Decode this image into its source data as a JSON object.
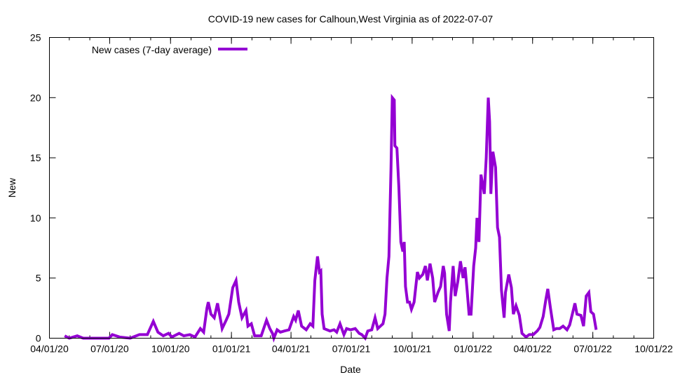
{
  "chart_data": {
    "type": "line",
    "title": "COVID-19 new cases for Calhoun,West Virginia as of 2022-07-07",
    "xlabel": "Date",
    "ylabel": "New",
    "ylim": [
      0,
      25
    ],
    "yticks": [
      0,
      5,
      10,
      15,
      20,
      25
    ],
    "x_origin": "2020-04-01",
    "x_unit": "days since 2020-04-01",
    "xlim": [
      0,
      913
    ],
    "xticks": [
      {
        "day": 0,
        "label": "04/01/20"
      },
      {
        "day": 91,
        "label": "07/01/20"
      },
      {
        "day": 183,
        "label": "10/01/20"
      },
      {
        "day": 275,
        "label": "01/01/21"
      },
      {
        "day": 365,
        "label": "04/01/21"
      },
      {
        "day": 456,
        "label": "07/01/21"
      },
      {
        "day": 548,
        "label": "10/01/21"
      },
      {
        "day": 640,
        "label": "01/01/22"
      },
      {
        "day": 730,
        "label": "04/01/22"
      },
      {
        "day": 821,
        "label": "07/01/22"
      },
      {
        "day": 913,
        "label": "10/01/22"
      }
    ],
    "grid": false,
    "legend": {
      "position": "top-left",
      "entries": [
        {
          "label": "New cases (7-day average)",
          "color": "#9400d3"
        }
      ]
    },
    "series": [
      {
        "name": "New cases (7-day average)",
        "color": "#9400d3",
        "points": [
          [
            23,
            0.2
          ],
          [
            30,
            0
          ],
          [
            42,
            0.2
          ],
          [
            51,
            0
          ],
          [
            90,
            0
          ],
          [
            95,
            0.3
          ],
          [
            106,
            0.1
          ],
          [
            122,
            0
          ],
          [
            136,
            0.3
          ],
          [
            148,
            0.3
          ],
          [
            157,
            1.4
          ],
          [
            164,
            0.5
          ],
          [
            172,
            0.2
          ],
          [
            180,
            0.4
          ],
          [
            185,
            0.1
          ],
          [
            196,
            0.4
          ],
          [
            203,
            0.2
          ],
          [
            212,
            0.3
          ],
          [
            220,
            0.1
          ],
          [
            228,
            0.8
          ],
          [
            233,
            0.5
          ],
          [
            238,
            2.5
          ],
          [
            240,
            3.0
          ],
          [
            244,
            2.0
          ],
          [
            249,
            1.7
          ],
          [
            254,
            2.9
          ],
          [
            261,
            0.8
          ],
          [
            267,
            1.5
          ],
          [
            271,
            2.0
          ],
          [
            277,
            4.2
          ],
          [
            282,
            4.8
          ],
          [
            286,
            3.0
          ],
          [
            291,
            1.7
          ],
          [
            297,
            2.3
          ],
          [
            300,
            1.0
          ],
          [
            305,
            1.2
          ],
          [
            310,
            0.2
          ],
          [
            320,
            0.2
          ],
          [
            328,
            1.5
          ],
          [
            333,
            0.8
          ],
          [
            337,
            0.4
          ],
          [
            339,
            0
          ],
          [
            344,
            0.7
          ],
          [
            349,
            0.5
          ],
          [
            355,
            0.6
          ],
          [
            362,
            0.7
          ],
          [
            369,
            1.8
          ],
          [
            372,
            1.5
          ],
          [
            376,
            2.3
          ],
          [
            381,
            1.0
          ],
          [
            388,
            0.7
          ],
          [
            394,
            1.2
          ],
          [
            398,
            1.0
          ],
          [
            401,
            4.8
          ],
          [
            405,
            6.8
          ],
          [
            408,
            5.5
          ],
          [
            410,
            5.6
          ],
          [
            412,
            2.0
          ],
          [
            415,
            0.8
          ],
          [
            424,
            0.6
          ],
          [
            430,
            0.7
          ],
          [
            434,
            0.5
          ],
          [
            439,
            1.2
          ],
          [
            445,
            0.3
          ],
          [
            449,
            0.8
          ],
          [
            455,
            0.7
          ],
          [
            462,
            0.8
          ],
          [
            468,
            0.4
          ],
          [
            472,
            0.3
          ],
          [
            477,
            0
          ],
          [
            481,
            0.6
          ],
          [
            487,
            0.7
          ],
          [
            492,
            1.7
          ],
          [
            496,
            0.8
          ],
          [
            500,
            1.0
          ],
          [
            504,
            1.2
          ],
          [
            507,
            2.0
          ],
          [
            510,
            5.0
          ],
          [
            513,
            6.8
          ],
          [
            516,
            14
          ],
          [
            518,
            20
          ],
          [
            521,
            19.8
          ],
          [
            522,
            16
          ],
          [
            525,
            15.8
          ],
          [
            528,
            12.5
          ],
          [
            531,
            8.0
          ],
          [
            534,
            7.2
          ],
          [
            536,
            8.0
          ],
          [
            538,
            4.3
          ],
          [
            541,
            3.0
          ],
          [
            544,
            3.0
          ],
          [
            547,
            2.4
          ],
          [
            551,
            3.0
          ],
          [
            556,
            5.5
          ],
          [
            559,
            5.0
          ],
          [
            564,
            5.3
          ],
          [
            568,
            6.0
          ],
          [
            571,
            4.8
          ],
          [
            575,
            6.2
          ],
          [
            579,
            5.0
          ],
          [
            582,
            3.0
          ],
          [
            587,
            3.8
          ],
          [
            591,
            4.3
          ],
          [
            595,
            6.0
          ],
          [
            597,
            5.4
          ],
          [
            600,
            2.0
          ],
          [
            604,
            0.6
          ],
          [
            606,
            3.0
          ],
          [
            610,
            6.0
          ],
          [
            613,
            3.5
          ],
          [
            617,
            4.7
          ],
          [
            621,
            6.4
          ],
          [
            625,
            5.0
          ],
          [
            628,
            5.9
          ],
          [
            631,
            4.0
          ],
          [
            634,
            2.0
          ],
          [
            637,
            2.0
          ],
          [
            641,
            6.0
          ],
          [
            644,
            7.5
          ],
          [
            646,
            10
          ],
          [
            649,
            8
          ],
          [
            652,
            13.6
          ],
          [
            657,
            12
          ],
          [
            660,
            15
          ],
          [
            663,
            20
          ],
          [
            665,
            18
          ],
          [
            667,
            12
          ],
          [
            670,
            15.5
          ],
          [
            674,
            14.2
          ],
          [
            677,
            9.2
          ],
          [
            680,
            8.4
          ],
          [
            683,
            4.0
          ],
          [
            687,
            1.7
          ],
          [
            689,
            3.8
          ],
          [
            694,
            5.3
          ],
          [
            698,
            4.2
          ],
          [
            701,
            2.0
          ],
          [
            705,
            2.7
          ],
          [
            710,
            1.9
          ],
          [
            714,
            0.4
          ],
          [
            720,
            0.1
          ],
          [
            725,
            0.3
          ],
          [
            731,
            0.3
          ],
          [
            737,
            0.6
          ],
          [
            741,
            0.9
          ],
          [
            746,
            1.8
          ],
          [
            750,
            3.2
          ],
          [
            753,
            4.1
          ],
          [
            757,
            2.5
          ],
          [
            762,
            0.7
          ],
          [
            766,
            0.8
          ],
          [
            771,
            0.8
          ],
          [
            776,
            1.0
          ],
          [
            782,
            0.7
          ],
          [
            786,
            1.1
          ],
          [
            790,
            2.0
          ],
          [
            794,
            2.9
          ],
          [
            797,
            2.0
          ],
          [
            803,
            1.9
          ],
          [
            807,
            1.0
          ],
          [
            811,
            3.5
          ],
          [
            815,
            3.8
          ],
          [
            818,
            2.2
          ],
          [
            822,
            2.0
          ],
          [
            826,
            0.7
          ]
        ]
      }
    ]
  }
}
